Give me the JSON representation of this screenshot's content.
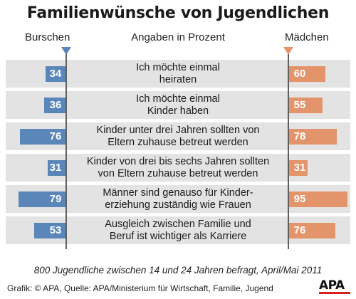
{
  "chart_data": {
    "type": "bar",
    "title": "Familienwünsche von Jugendlichen",
    "unit_label": "Angaben in Prozent",
    "categories": [
      "Ich möchte einmal\nheiraten",
      "Ich möchte einmal\nKinder haben",
      "Kinder unter drei Jahren sollten von\nEltern zuhause betreut werden",
      "Kinder von drei bis sechs Jahren sollten\nvon Eltern zuhause betreut werden",
      "Männer sind genauso für Kinder-\nerziehung zuständig wie Frauen",
      "Ausgleich zwischen Familie und\nBeruf ist wichtiger als Karriere"
    ],
    "series": [
      {
        "name": "Burschen",
        "color": "#5a86b9",
        "values": [
          34,
          36,
          76,
          31,
          79,
          53
        ]
      },
      {
        "name": "Mädchen",
        "color": "#e4946a",
        "values": [
          60,
          55,
          78,
          31,
          95,
          76
        ]
      }
    ],
    "xlim": [
      0,
      100
    ],
    "grid": false
  },
  "footnote": "800 Jugendliche zwischen 14 und 24 Jahren befragt, April/Mai 2011",
  "credit": "Grafik: © APA, Quelle: APA/Ministerium für Wirtschaft, Familie, Jugend",
  "logo": "APA",
  "colors": {
    "background": "#ffffff",
    "band": "#e3e3e3",
    "logo_accent": "#d6201f"
  }
}
